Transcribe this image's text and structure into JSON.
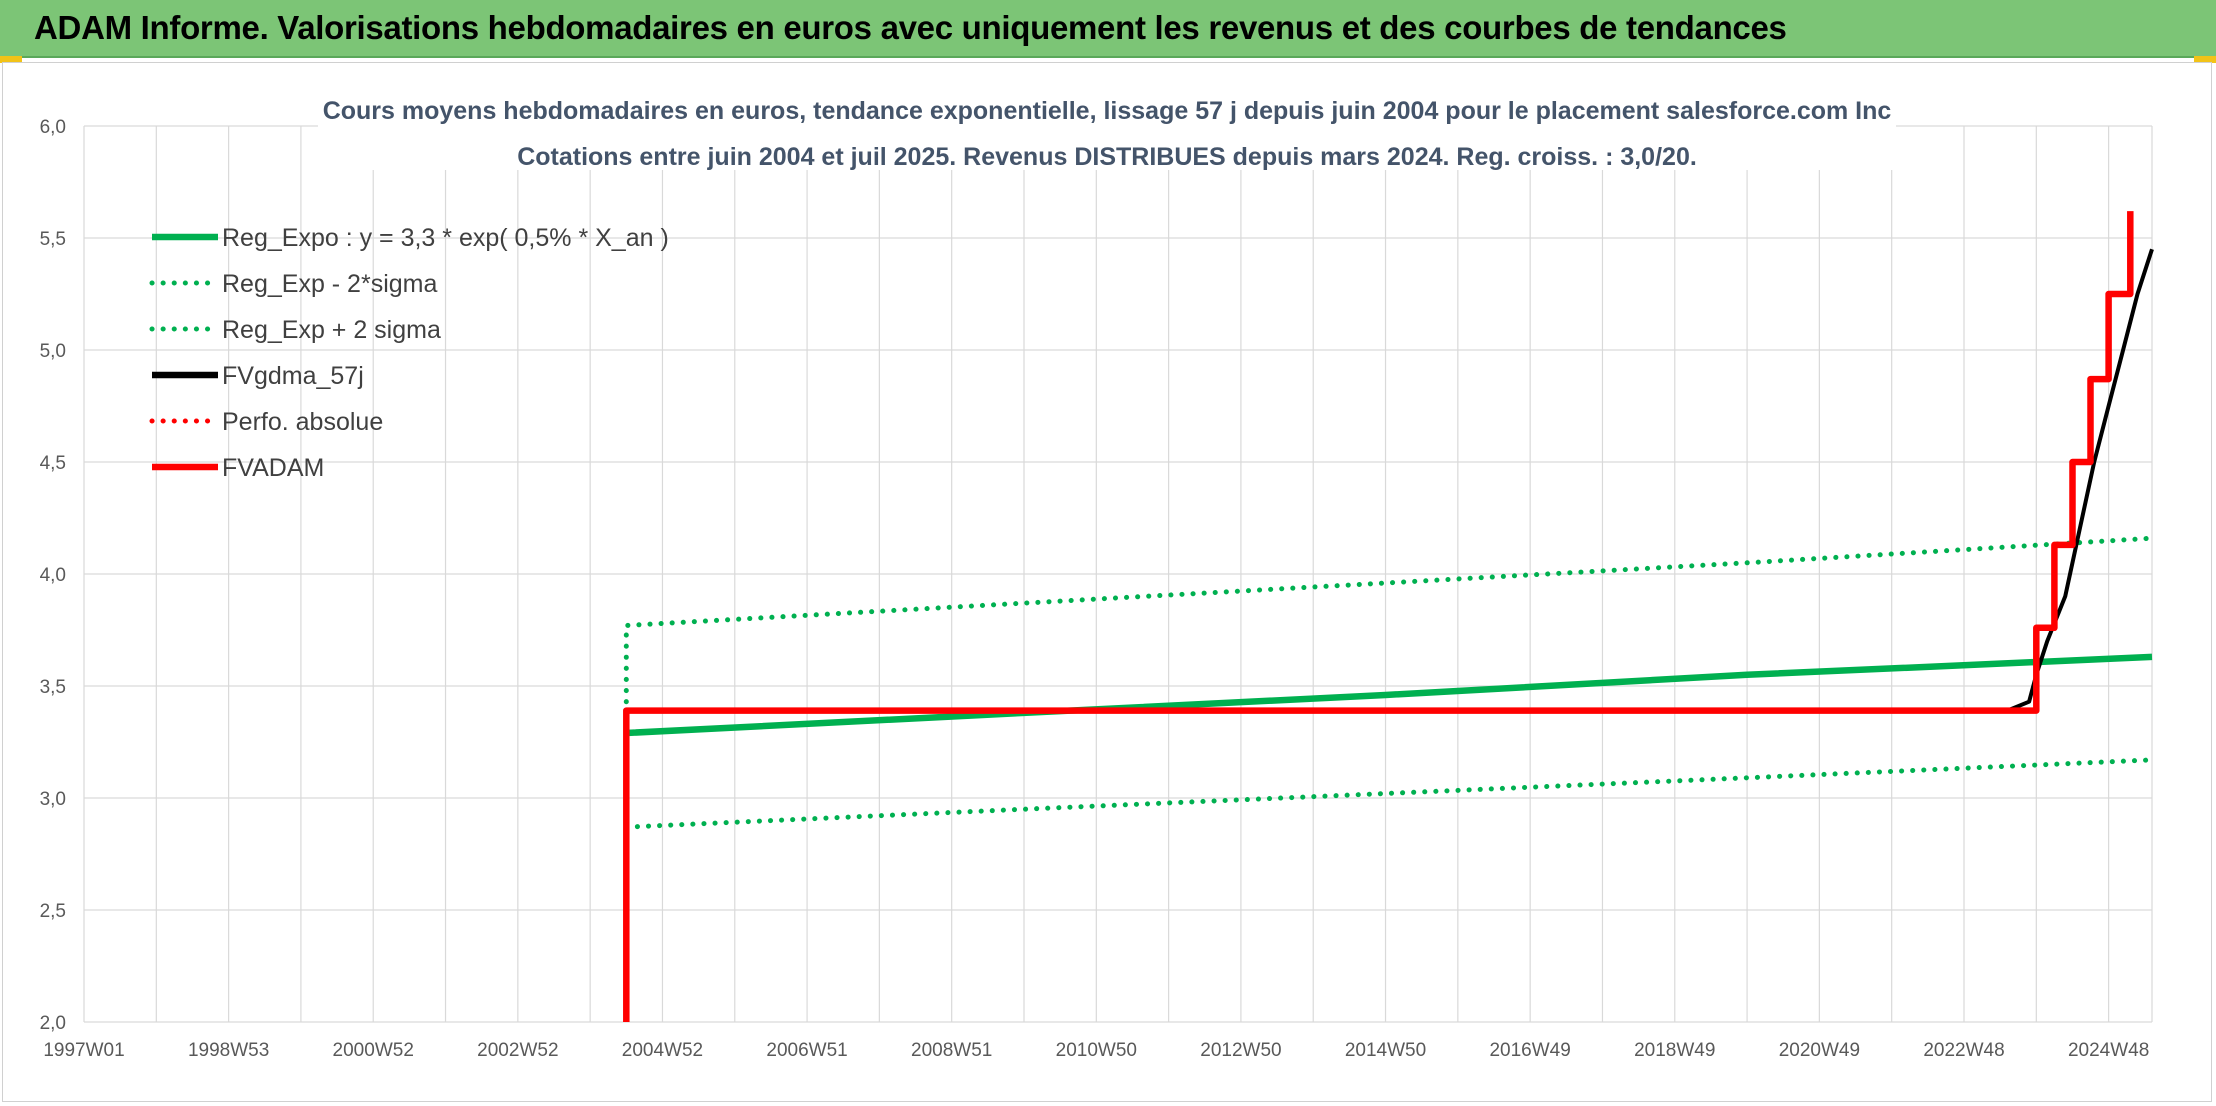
{
  "header": {
    "title": "ADAM Informe. Valorisations hebdomadaires en euros avec uniquement les revenus et des courbes de tendances"
  },
  "colors": {
    "banner": "#7cc576",
    "green": "#00b050",
    "red": "#ff0000",
    "black": "#000000",
    "grid": "#d9d9d9"
  },
  "chart_data": {
    "type": "line",
    "title": "Cours moyens hebdomadaires en euros, tendance exponentielle, lissage 57 j depuis juin 2004 pour le placement salesforce.com Inc",
    "subtitle": "Cotations entre juin 2004 et juil 2025. Revenus DISTRIBUES depuis mars 2024. Reg. croiss. : 3,0/20.",
    "xlabel": "",
    "ylabel": "",
    "x_range": [
      1997.0,
      2025.6
    ],
    "ylim": [
      2.0,
      6.0
    ],
    "y_ticks": [
      "2,0",
      "2,5",
      "3,0",
      "3,5",
      "4,0",
      "4,5",
      "5,0",
      "5,5",
      "6,0"
    ],
    "y_tick_values": [
      2.0,
      2.5,
      3.0,
      3.5,
      4.0,
      4.5,
      5.0,
      5.5,
      6.0
    ],
    "x_ticks": [
      {
        "label": "1997W01",
        "x": 1997.0
      },
      {
        "label": "1998W53",
        "x": 1999.0
      },
      {
        "label": "2000W52",
        "x": 2001.0
      },
      {
        "label": "2002W52",
        "x": 2003.0
      },
      {
        "label": "2004W52",
        "x": 2005.0
      },
      {
        "label": "2006W51",
        "x": 2007.0
      },
      {
        "label": "2008W51",
        "x": 2009.0
      },
      {
        "label": "2010W50",
        "x": 2011.0
      },
      {
        "label": "2012W50",
        "x": 2013.0
      },
      {
        "label": "2014W50",
        "x": 2015.0
      },
      {
        "label": "2016W49",
        "x": 2017.0
      },
      {
        "label": "2018W49",
        "x": 2019.0
      },
      {
        "label": "2020W49",
        "x": 2021.0
      },
      {
        "label": "2022W48",
        "x": 2023.0
      },
      {
        "label": "2024W48",
        "x": 2025.0
      }
    ],
    "grid": true,
    "legend_position": "top-left",
    "series": [
      {
        "name": "Reg_Expo : y = 3,3 * exp( 0,5% *  X_an )",
        "style": "solid",
        "color": "#00b050",
        "points": [
          [
            2004.5,
            3.29
          ],
          [
            2010.0,
            3.38
          ],
          [
            2015.0,
            3.46
          ],
          [
            2020.0,
            3.55
          ],
          [
            2025.6,
            3.63
          ]
        ]
      },
      {
        "name": "Reg_Exp - 2*sigma",
        "style": "dotted",
        "color": "#00b050",
        "points": [
          [
            2004.5,
            2.87
          ],
          [
            2010.0,
            2.95
          ],
          [
            2015.0,
            3.02
          ],
          [
            2020.0,
            3.09
          ],
          [
            2025.6,
            3.17
          ]
        ]
      },
      {
        "name": "Reg_Exp + 2 sigma",
        "style": "dotted",
        "color": "#00b050",
        "points": [
          [
            2004.5,
            3.43
          ],
          [
            2004.5,
            3.77
          ],
          [
            2010.0,
            3.87
          ],
          [
            2015.0,
            3.96
          ],
          [
            2020.0,
            4.05
          ],
          [
            2025.6,
            4.16
          ]
        ]
      },
      {
        "name": "FVgdma_57j",
        "style": "solid",
        "color": "#000000",
        "points": [
          [
            2004.5,
            3.39
          ],
          [
            2023.6,
            3.39
          ],
          [
            2023.9,
            3.43
          ],
          [
            2024.0,
            3.55
          ],
          [
            2024.15,
            3.7
          ],
          [
            2024.4,
            3.9
          ],
          [
            2024.6,
            4.2
          ],
          [
            2024.8,
            4.5
          ],
          [
            2025.0,
            4.75
          ],
          [
            2025.2,
            5.0
          ],
          [
            2025.4,
            5.25
          ],
          [
            2025.6,
            5.45
          ]
        ]
      },
      {
        "name": "Perfo. absolue",
        "style": "dotted",
        "color": "#ff0000",
        "points": []
      },
      {
        "name": "FVADAM",
        "style": "solid",
        "color": "#ff0000",
        "points": [
          [
            2004.5,
            2.0
          ],
          [
            2004.5,
            3.39
          ],
          [
            2024.0,
            3.39
          ],
          [
            2024.0,
            3.76
          ],
          [
            2024.25,
            3.76
          ],
          [
            2024.25,
            4.13
          ],
          [
            2024.5,
            4.13
          ],
          [
            2024.5,
            4.5
          ],
          [
            2024.75,
            4.5
          ],
          [
            2024.75,
            4.87
          ],
          [
            2025.0,
            4.87
          ],
          [
            2025.0,
            5.25
          ],
          [
            2025.3,
            5.25
          ],
          [
            2025.3,
            5.62
          ]
        ]
      }
    ]
  }
}
